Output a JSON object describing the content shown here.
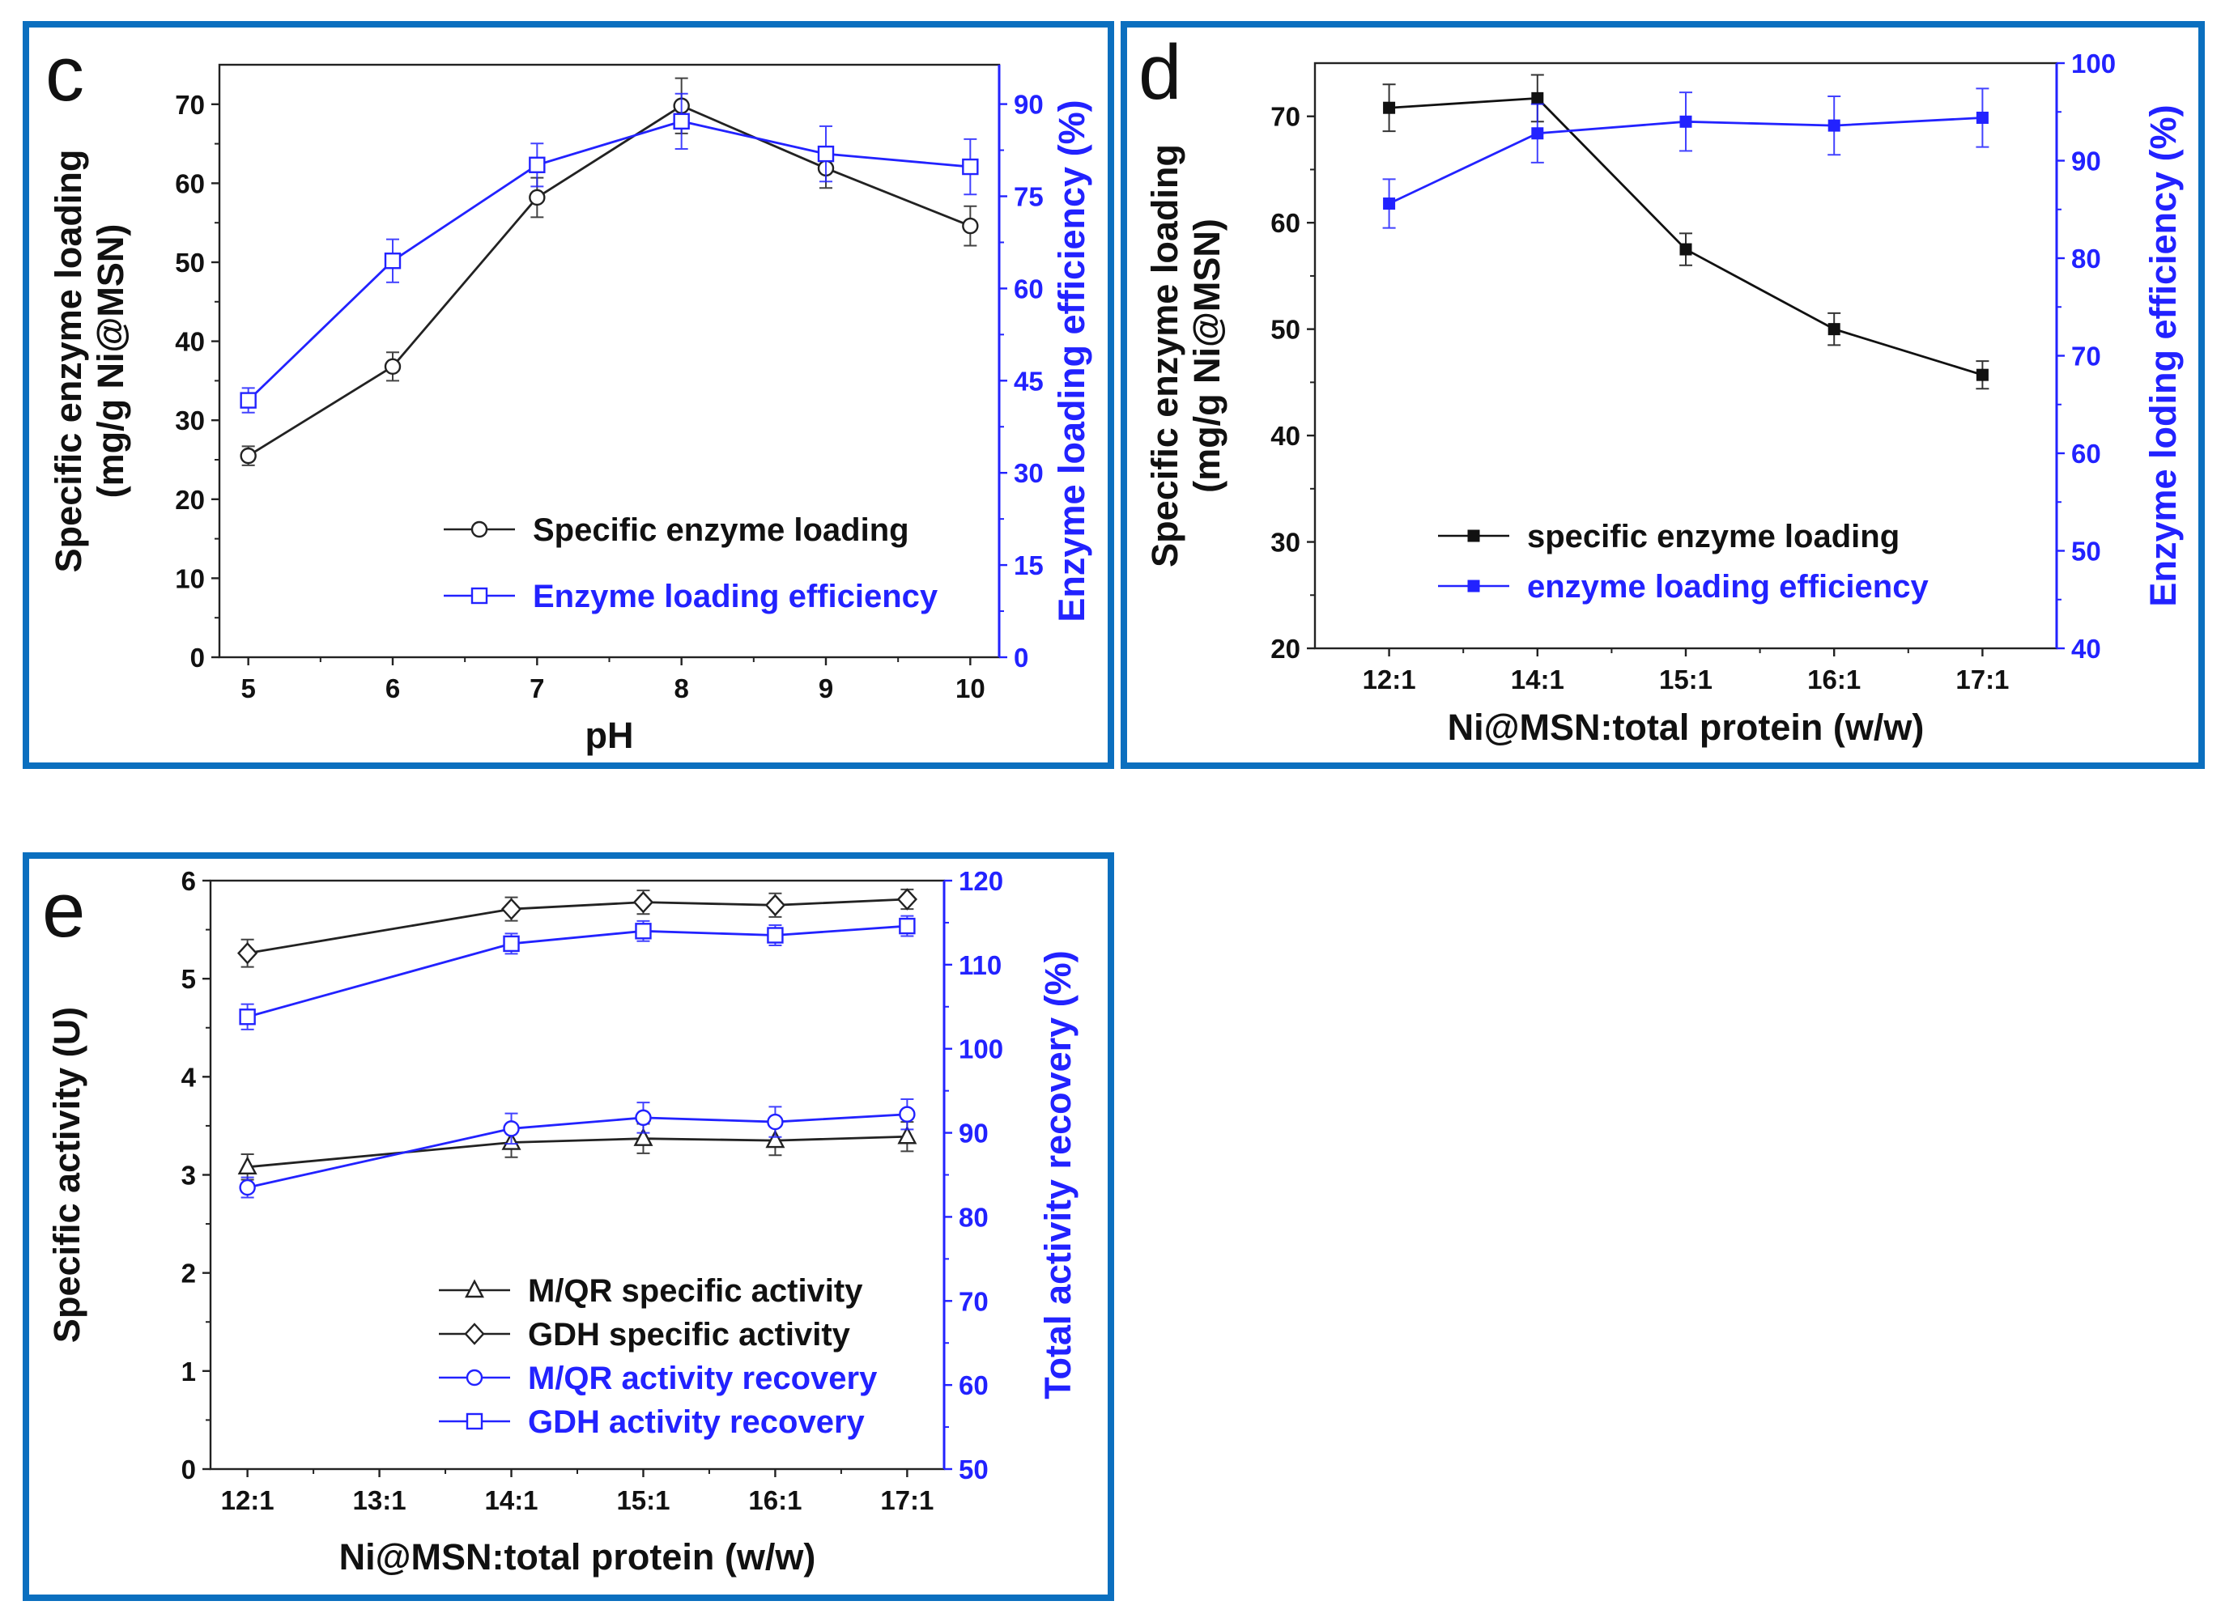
{
  "chart_data": [
    {
      "panel": "c",
      "type": "line",
      "panel_letter": "c",
      "xlabel": "pH",
      "ylabel_left": [
        "Specific enzyme loading",
        "(mg/g Ni@MSN)"
      ],
      "ylabel_right": "Enzyme loading efficiency (%)",
      "x": [
        5,
        6,
        7,
        8,
        9,
        10
      ],
      "xticks": [
        "5",
        "6",
        "7",
        "8",
        "9",
        "10"
      ],
      "xlim": [
        4.8,
        10.2
      ],
      "ylim_left": [
        0,
        75
      ],
      "yticks_left": [
        "0",
        "10",
        "20",
        "30",
        "40",
        "50",
        "60",
        "70"
      ],
      "ylim_right": [
        0,
        96.4
      ],
      "yticks_right": [
        "0",
        "15",
        "30",
        "45",
        "60",
        "75",
        "90"
      ],
      "series": [
        {
          "name": "Specific enzyme loading",
          "axis": "left",
          "color": "#222222",
          "marker": "open-circle",
          "values": [
            25.5,
            36.8,
            58.2,
            69.8,
            61.9,
            54.6
          ],
          "errors": [
            1.2,
            1.8,
            2.5,
            3.5,
            2.5,
            2.5
          ]
        },
        {
          "name": "Enzyme loading efficiency",
          "axis": "right",
          "color": "#2222ff",
          "marker": "open-square",
          "values": [
            41.8,
            64.5,
            80.1,
            87.2,
            81.9,
            79.8
          ],
          "errors": [
            2.0,
            3.5,
            3.5,
            4.5,
            4.5,
            4.5
          ]
        }
      ]
    },
    {
      "panel": "d",
      "type": "line",
      "panel_letter": "d",
      "xlabel": "Ni@MSN:total protein (w/w)",
      "ylabel_left": [
        "Specific enzyme loading",
        "(mg/g Ni@MSN)"
      ],
      "ylabel_right": "Enzyme loding efficiency (%)",
      "categories": [
        "12:1",
        "14:1",
        "15:1",
        "16:1",
        "17:1"
      ],
      "xticks": [
        "12:1",
        "14:1",
        "15:1",
        "16:1",
        "17:1"
      ],
      "ylim_left": [
        20,
        75
      ],
      "yticks_left": [
        "20",
        "30",
        "40",
        "50",
        "60",
        "70"
      ],
      "ylim_right": [
        40,
        100
      ],
      "yticks_right": [
        "40",
        "50",
        "60",
        "70",
        "80",
        "90",
        "100"
      ],
      "series": [
        {
          "name": "specific enzyme loading",
          "axis": "left",
          "color": "#111111",
          "marker": "filled-square",
          "values": [
            70.8,
            71.7,
            57.5,
            50.0,
            45.7
          ],
          "errors": [
            2.2,
            2.2,
            1.5,
            1.5,
            1.3
          ]
        },
        {
          "name": "enzyme loading efficiency",
          "axis": "right",
          "color": "#2222ff",
          "marker": "filled-square",
          "values": [
            85.6,
            92.8,
            94.0,
            93.6,
            94.4
          ],
          "errors": [
            2.5,
            3.0,
            3.0,
            3.0,
            3.0
          ]
        }
      ]
    },
    {
      "panel": "e",
      "type": "line",
      "panel_letter": "e",
      "xlabel": "Ni@MSN:total protein (w/w)",
      "ylabel_left": "Specific activity (U)",
      "ylabel_right": "Total activity recovery (%)",
      "x": [
        12,
        14,
        15,
        16,
        17
      ],
      "xticks": [
        "12:1",
        "13:1",
        "14:1",
        "15:1",
        "16:1",
        "17:1"
      ],
      "xlim": [
        11.72,
        17.28
      ],
      "ylim_left": [
        0,
        6
      ],
      "yticks_left": [
        "0",
        "1",
        "2",
        "3",
        "4",
        "5",
        "6"
      ],
      "ylim_right": [
        50,
        120
      ],
      "yticks_right": [
        "50",
        "60",
        "70",
        "80",
        "90",
        "100",
        "110",
        "120"
      ],
      "series": [
        {
          "name": "M/QR specific activity",
          "axis": "left",
          "color": "#222222",
          "marker": "open-triangle",
          "values": [
            3.08,
            3.33,
            3.37,
            3.35,
            3.39
          ],
          "errors": [
            0.13,
            0.15,
            0.15,
            0.15,
            0.15
          ]
        },
        {
          "name": "GDH specific activity",
          "axis": "left",
          "color": "#222222",
          "marker": "open-diamond",
          "values": [
            5.26,
            5.71,
            5.78,
            5.75,
            5.81
          ],
          "errors": [
            0.14,
            0.12,
            0.12,
            0.12,
            0.1
          ]
        },
        {
          "name": "M/QR activity recovery",
          "axis": "right",
          "color": "#2222ff",
          "marker": "open-circle",
          "values": [
            83.5,
            90.5,
            91.8,
            91.3,
            92.2
          ],
          "errors": [
            1.2,
            1.8,
            1.8,
            1.8,
            1.8
          ]
        },
        {
          "name": "GDH activity recovery",
          "axis": "right",
          "color": "#2222ff",
          "marker": "open-square",
          "values": [
            103.8,
            112.5,
            114.0,
            113.5,
            114.6
          ],
          "errors": [
            1.5,
            1.2,
            1.2,
            1.2,
            1.2
          ]
        }
      ]
    }
  ]
}
